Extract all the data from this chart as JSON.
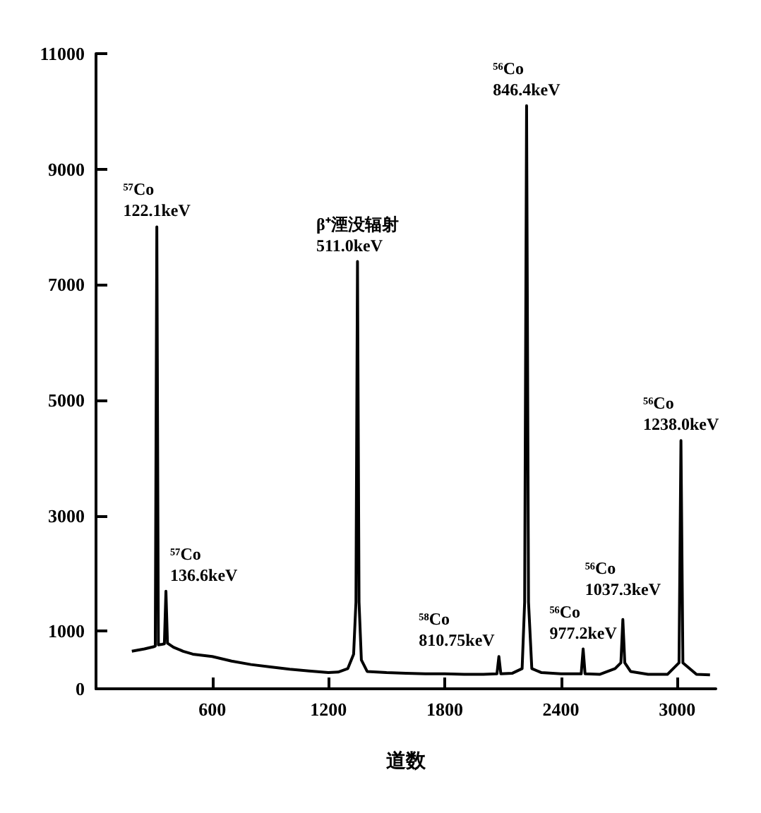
{
  "chart_data": {
    "type": "line",
    "xlabel": "道数",
    "x": [
      185,
      250,
      300,
      306,
      314,
      322,
      340,
      353,
      361,
      369,
      400,
      450,
      500,
      600,
      700,
      800,
      900,
      1000,
      1100,
      1200,
      1250,
      1300,
      1330,
      1342,
      1350,
      1358,
      1370,
      1400,
      1500,
      1600,
      1700,
      1800,
      1900,
      2000,
      2070,
      2080,
      2090,
      2150,
      2200,
      2213,
      2223,
      2233,
      2250,
      2300,
      2400,
      2505,
      2515,
      2525,
      2600,
      2680,
      2710,
      2720,
      2730,
      2760,
      2850,
      2950,
      3010,
      3020,
      3030,
      3100,
      3170
    ],
    "series": [
      {
        "color": "#000000",
        "values": [
          650,
          690,
          730,
          740,
          8000,
          760,
          770,
          780,
          1690,
          790,
          720,
          650,
          600,
          560,
          480,
          420,
          380,
          340,
          310,
          280,
          290,
          350,
          600,
          1500,
          7400,
          1500,
          500,
          300,
          280,
          270,
          260,
          260,
          250,
          250,
          260,
          560,
          260,
          270,
          350,
          1500,
          10100,
          1500,
          350,
          280,
          260,
          260,
          690,
          260,
          250,
          350,
          450,
          1200,
          450,
          300,
          250,
          250,
          450,
          4300,
          450,
          250,
          240
        ]
      }
    ],
    "xlim": [
      0,
      3200
    ],
    "xticks": [
      600,
      1200,
      1800,
      2400,
      3000
    ],
    "ylim": [
      0,
      11000
    ],
    "yticks": [
      0,
      1000,
      3000,
      5000,
      7000,
      9000,
      11000
    ],
    "grid": false,
    "marker": "none",
    "line_style": "solid",
    "annotations": [
      {
        "text": "⁵⁷Co\n122.1keV",
        "x": 314,
        "y": 8000
      },
      {
        "text": "⁵⁷Co\n136.6keV",
        "x": 361,
        "y": 1690
      },
      {
        "text": "β⁺湮没辐射\n511.0keV",
        "x": 1350,
        "y": 7400
      },
      {
        "text": "⁵⁶Co\n846.4keV",
        "x": 2223,
        "y": 10100
      },
      {
        "text": "⁵⁸Co\n810.75keV",
        "x": 2080,
        "y": 560
      },
      {
        "text": "⁵⁶Co\n977.2keV",
        "x": 2515,
        "y": 690
      },
      {
        "text": "⁵⁶Co\n1037.3keV",
        "x": 2720,
        "y": 1200
      },
      {
        "text": "⁵⁶Co\n1238.0keV",
        "x": 3020,
        "y": 4300
      }
    ]
  }
}
